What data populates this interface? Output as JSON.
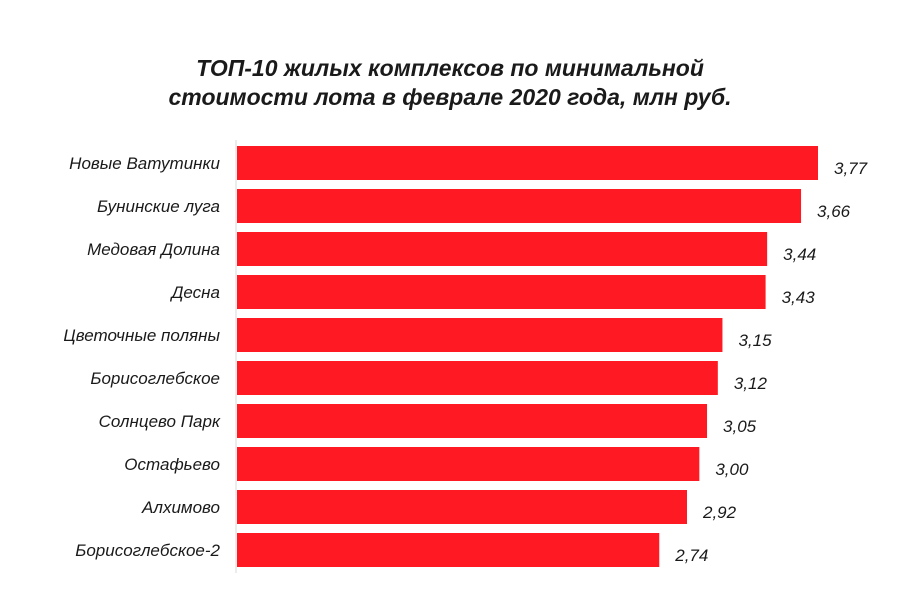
{
  "chart_data": {
    "type": "bar",
    "orientation": "horizontal",
    "title": [
      "ТОП-10 жилых комплексов по минимальной",
      "стоимости лота в феврале 2020 года, млн руб."
    ],
    "categories": [
      "Новые Ватутинки",
      "Бунинские луга",
      "Медовая Долина",
      "Десна",
      "Цветочные поляны",
      "Борисоглебское",
      "Солнцево Парк",
      "Остафьево",
      "Алхимово",
      "Борисоглебское-2"
    ],
    "values": [
      3.77,
      3.66,
      3.44,
      3.43,
      3.15,
      3.12,
      3.05,
      3.0,
      2.92,
      2.74
    ],
    "data_labels": [
      "3,77",
      "3,66",
      "3,44",
      "3,43",
      "3,15",
      "3,12",
      "3,05",
      "3,00",
      "2,92",
      "2,74"
    ],
    "xlim": [
      0,
      3.77
    ],
    "grid": false,
    "legend": "none",
    "bar_color": "#ff1a23",
    "axis_color": "#d9d9d9"
  }
}
